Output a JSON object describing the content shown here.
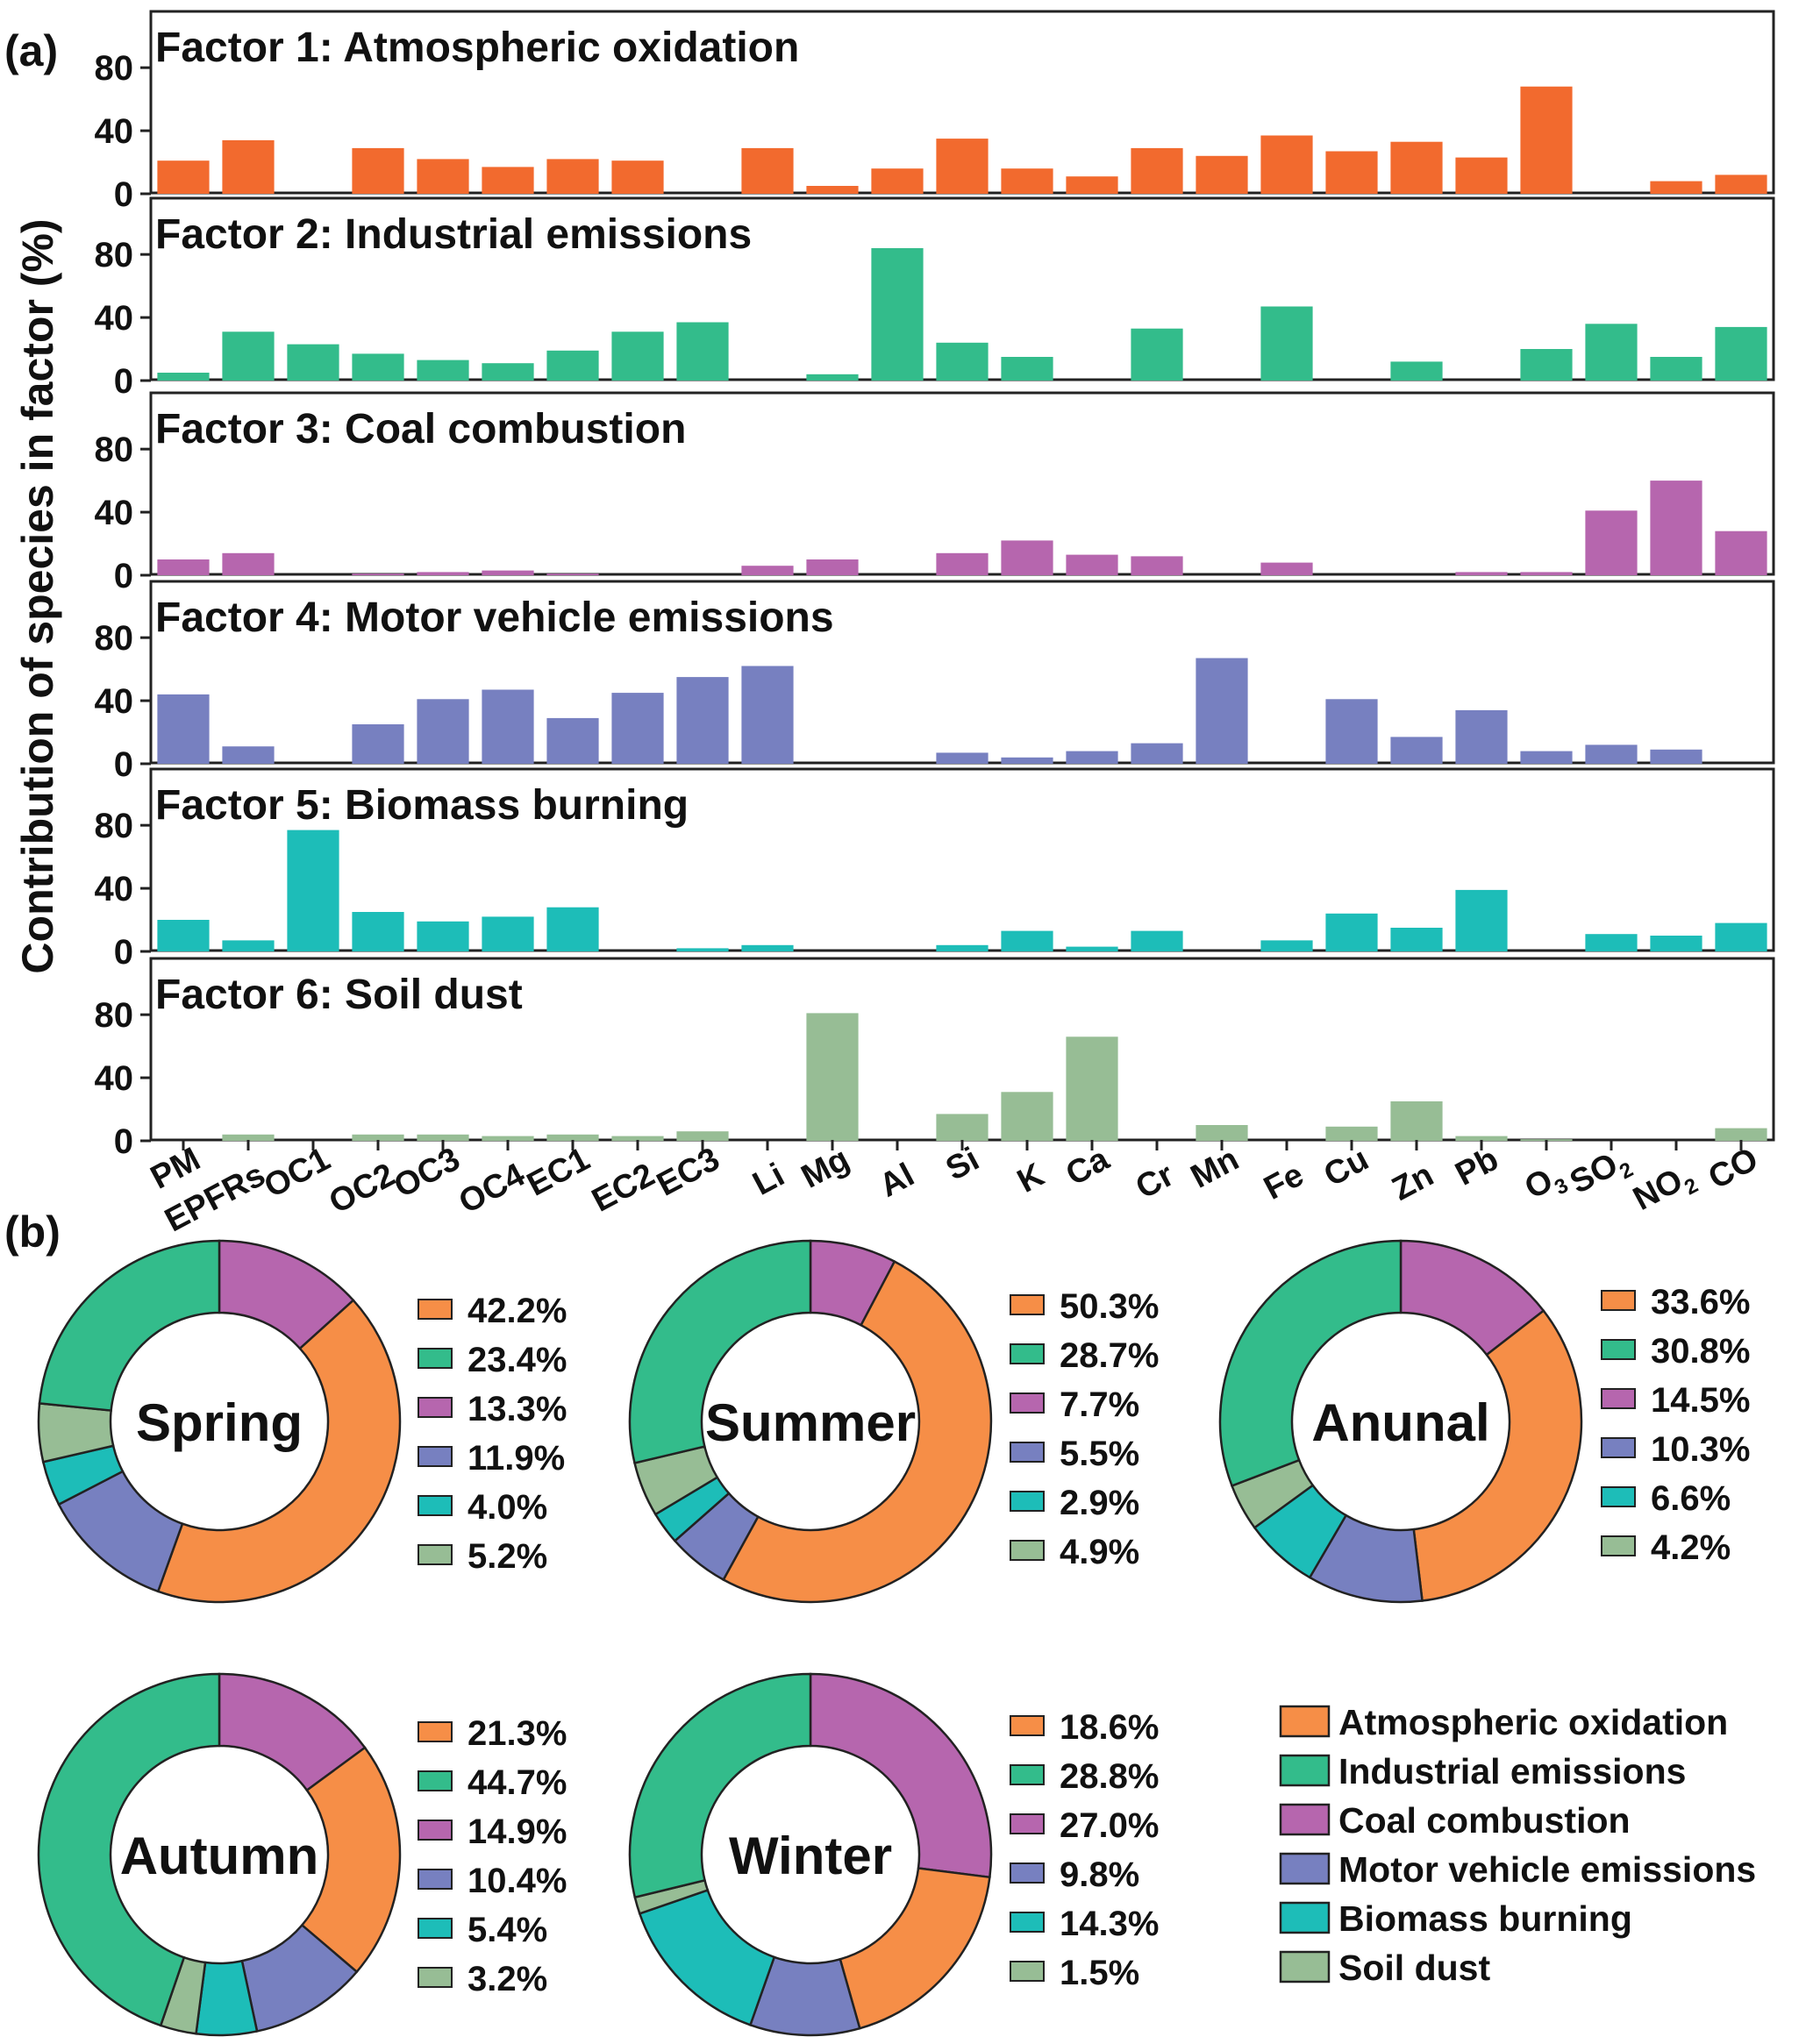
{
  "panel_labels": {
    "a": "(a)",
    "b": "(b)"
  },
  "colors": {
    "Atmospheric oxidation": "#F26A2E",
    "Industrial emissions": "#33BC8B",
    "Coal combustion": "#B666AE",
    "Motor vehicle emissions": "#7780C0",
    "Biomass burning": "#1DBDB8",
    "Soil dust": "#97BD95",
    "Atmospheric oxidation (pie)": "#F68E47"
  },
  "chart_data": [
    {
      "type": "bar",
      "ylabel": "Contribution of species in factor (%)",
      "ylim": [
        0,
        105
      ],
      "yticks": [
        "0",
        "40",
        "80"
      ],
      "grid": false,
      "categories": [
        "PM",
        "EPFRs",
        "OC1",
        "OC2",
        "OC3",
        "OC4",
        "EC1",
        "EC2",
        "EC3",
        "Li",
        "Mg",
        "Al",
        "Si",
        "K",
        "Ca",
        "Cr",
        "Mn",
        "Fe",
        "Cu",
        "Zn",
        "Pb",
        "O3",
        "SO2",
        "NO2",
        "CO"
      ],
      "category_labels": [
        {
          "base": "PM"
        },
        {
          "base": "EPFRs"
        },
        {
          "base": "OC1"
        },
        {
          "base": "OC2"
        },
        {
          "base": "OC3"
        },
        {
          "base": "OC4"
        },
        {
          "base": "EC1"
        },
        {
          "base": "EC2"
        },
        {
          "base": "EC3"
        },
        {
          "base": "Li"
        },
        {
          "base": "Mg"
        },
        {
          "base": "Al"
        },
        {
          "base": "Si"
        },
        {
          "base": "K"
        },
        {
          "base": "Ca"
        },
        {
          "base": "Cr"
        },
        {
          "base": "Mn"
        },
        {
          "base": "Fe"
        },
        {
          "base": "Cu"
        },
        {
          "base": "Zn"
        },
        {
          "base": "Pb"
        },
        {
          "base": "O",
          "sub": "3"
        },
        {
          "base": "SO",
          "sub": "2"
        },
        {
          "base": "NO",
          "sub": "2"
        },
        {
          "base": "CO"
        }
      ],
      "series": [
        {
          "name": "Factor 1: Atmospheric oxidation",
          "color": "#F26A2E",
          "values": [
            21,
            34,
            0,
            29,
            22,
            17,
            22,
            21,
            0,
            29,
            5,
            16,
            35,
            16,
            11,
            29,
            24,
            37,
            27,
            33,
            23,
            68,
            0,
            8,
            12
          ]
        },
        {
          "name": "Factor 2: Industrial emissions",
          "color": "#33BC8B",
          "values": [
            5,
            31,
            23,
            17,
            13,
            11,
            19,
            31,
            37,
            0,
            4,
            84,
            24,
            15,
            0,
            33,
            0,
            47,
            0,
            12,
            0,
            20,
            36,
            15,
            34
          ]
        },
        {
          "name": "Factor 3: Coal combustion",
          "color": "#B666AE",
          "values": [
            10,
            14,
            0,
            1,
            2,
            3,
            1,
            0,
            0,
            6,
            10,
            0,
            14,
            22,
            13,
            12,
            0,
            8,
            0,
            0,
            2,
            2,
            41,
            60,
            28
          ]
        },
        {
          "name": "Factor 4: Motor vehicle emissions",
          "color": "#7780C0",
          "values": [
            44,
            11,
            0,
            25,
            41,
            47,
            29,
            45,
            55,
            62,
            0,
            0,
            7,
            4,
            8,
            13,
            67,
            0,
            41,
            17,
            34,
            8,
            12,
            9,
            0
          ]
        },
        {
          "name": "Factor 5: Biomass burning",
          "color": "#1DBDB8",
          "values": [
            20,
            7,
            77,
            25,
            19,
            22,
            28,
            0,
            2,
            4,
            0,
            0,
            4,
            13,
            3,
            13,
            0,
            7,
            24,
            15,
            39,
            0,
            11,
            10,
            18
          ]
        },
        {
          "name": "Factor 6: Soil dust",
          "color": "#97BD95",
          "values": [
            0,
            4,
            0,
            4,
            4,
            3,
            4,
            3,
            6,
            0,
            81,
            0,
            17,
            31,
            66,
            0,
            10,
            0,
            9,
            25,
            3,
            1,
            0,
            0,
            8
          ]
        }
      ]
    },
    {
      "type": "pie",
      "pies": [
        {
          "name": "Spring",
          "labels": [
            "42.2%",
            "23.4%",
            "13.3%",
            "11.9%",
            "4.0%",
            "5.2%"
          ],
          "values": [
            42.2,
            23.4,
            13.3,
            11.9,
            4.0,
            5.2
          ]
        },
        {
          "name": "Summer",
          "labels": [
            "50.3%",
            "28.7%",
            "7.7%",
            "5.5%",
            "2.9%",
            "4.9%"
          ],
          "values": [
            50.3,
            28.7,
            7.7,
            5.5,
            2.9,
            4.9
          ]
        },
        {
          "name": "Anunal",
          "labels": [
            "33.6%",
            "30.8%",
            "14.5%",
            "10.3%",
            "6.6%",
            "4.2%"
          ],
          "values": [
            33.6,
            30.8,
            14.5,
            10.3,
            6.6,
            4.2
          ]
        },
        {
          "name": "Autumn",
          "labels": [
            "21.3%",
            "44.7%",
            "14.9%",
            "10.4%",
            "5.4%",
            "3.2%"
          ],
          "values": [
            21.3,
            44.7,
            14.9,
            10.4,
            5.4,
            3.2
          ]
        },
        {
          "name": "Winter",
          "labels": [
            "18.6%",
            "28.8%",
            "27.0%",
            "9.8%",
            "14.3%",
            "1.5%"
          ],
          "values": [
            18.6,
            28.8,
            27.0,
            9.8,
            14.3,
            1.5
          ]
        }
      ],
      "slice_order": [
        "Atmospheric oxidation",
        "Industrial emissions",
        "Coal combustion",
        "Motor vehicle emissions",
        "Biomass burning",
        "Soil dust"
      ],
      "slice_colors": [
        "#F68E47",
        "#33BC8B",
        "#B666AE",
        "#7780C0",
        "#1DBDB8",
        "#97BD95"
      ],
      "legend": {
        "placement": "bottom-right",
        "entries": [
          "Atmospheric oxidation",
          "Industrial emissions",
          "Coal combustion",
          "Motor vehicle emissions",
          "Biomass burning",
          "Soil dust"
        ]
      }
    }
  ]
}
